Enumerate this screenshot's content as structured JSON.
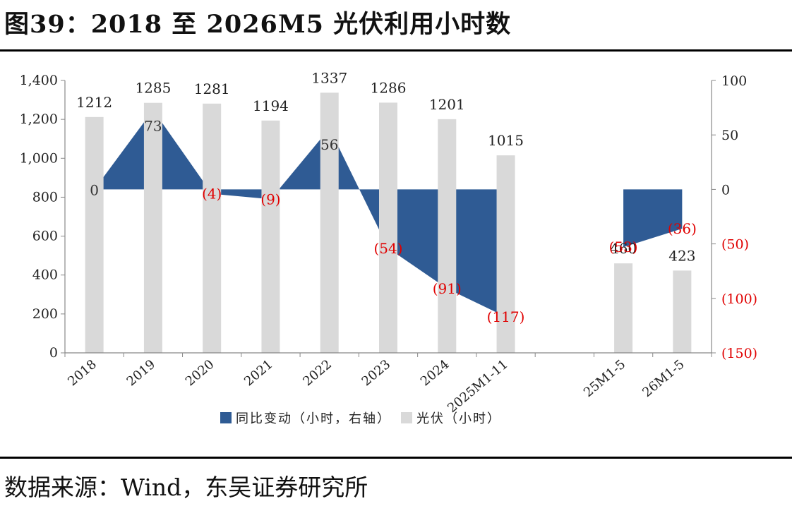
{
  "title": "图39：2018 至 2026M5 光伏利用小时数",
  "source": "数据来源：Wind，东吴证券研究所",
  "colors": {
    "bar": "#d9d9d9",
    "area": "#2f5b94",
    "negative_label": "#e00000",
    "axis": "#888888"
  },
  "chart_data": {
    "type": "bar",
    "categories": [
      "2018",
      "2019",
      "2020",
      "2021",
      "2022",
      "2023",
      "2024",
      "2025M1-11",
      "",
      "25M1-5",
      "26M1-5"
    ],
    "series": [
      {
        "name": "同比变动（小时，右轴）",
        "type": "area",
        "axis": "right",
        "values": [
          0,
          73,
          -4,
          -9,
          56,
          -54,
          -91,
          -117,
          null,
          -53,
          -36
        ]
      },
      {
        "name": "光伏（小时）",
        "type": "bar",
        "axis": "left",
        "values": [
          1212,
          1285,
          1281,
          1194,
          1337,
          1286,
          1201,
          1015,
          null,
          460,
          423
        ]
      }
    ],
    "bar_labels": [
      "1212",
      "1285",
      "1281",
      "1194",
      "1337",
      "1286",
      "1201",
      "1015",
      "",
      "460",
      "423"
    ],
    "change_labels": [
      "0",
      "73",
      "(4)",
      "(9)",
      "56",
      "(54)",
      "(91)",
      "(117)",
      "",
      "(53)",
      "(36)"
    ],
    "y_left": {
      "min": 0,
      "max": 1400,
      "ticks": [
        "0",
        "200",
        "400",
        "600",
        "800",
        "1,000",
        "1,200",
        "1,400"
      ]
    },
    "y_right": {
      "min": -150,
      "max": 100,
      "ticks": [
        "(150)",
        "(100)",
        "(50)",
        "0",
        "50",
        "100"
      ]
    },
    "legend": [
      "同比变动（小时，右轴）",
      "光伏（小时）"
    ],
    "legend_position": "bottom",
    "grid": false
  }
}
